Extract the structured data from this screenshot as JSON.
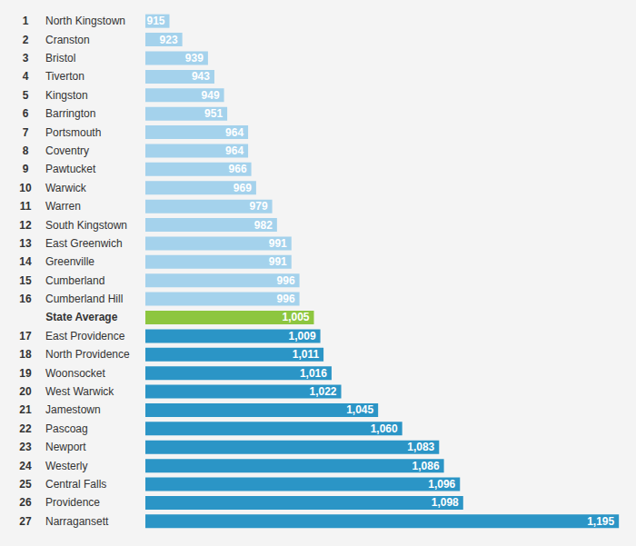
{
  "chart_data": {
    "type": "bar",
    "orientation": "horizontal",
    "ranks": [
      1,
      2,
      3,
      4,
      5,
      6,
      7,
      8,
      9,
      10,
      11,
      12,
      13,
      14,
      15,
      16,
      null,
      17,
      18,
      19,
      20,
      21,
      22,
      23,
      24,
      25,
      26,
      27
    ],
    "categories": [
      "North Kingstown",
      "Cranston",
      "Bristol",
      "Tiverton",
      "Kingston",
      "Barrington",
      "Portsmouth",
      "Coventry",
      "Pawtucket",
      "Warwick",
      "Warren",
      "South Kingstown",
      "East Greenwich",
      "Greenville",
      "Cumberland",
      "Cumberland Hill",
      "State Average",
      "East Providence",
      "North Providence",
      "Woonsocket",
      "West Warwick",
      "Jamestown",
      "Pascoag",
      "Newport",
      "Westerly",
      "Central Falls",
      "Providence",
      "Narragansett"
    ],
    "values": [
      915,
      923,
      939,
      943,
      949,
      951,
      964,
      964,
      966,
      969,
      979,
      982,
      991,
      991,
      996,
      996,
      1005,
      1009,
      1011,
      1016,
      1022,
      1045,
      1060,
      1083,
      1086,
      1096,
      1098,
      1195
    ],
    "value_labels": [
      "915",
      "923",
      "939",
      "943",
      "949",
      "951",
      "964",
      "964",
      "966",
      "969",
      "979",
      "982",
      "991",
      "991",
      "996",
      "996",
      "1,005",
      "1,009",
      "1,011",
      "1,016",
      "1,022",
      "1,045",
      "1,060",
      "1,083",
      "1,086",
      "1,096",
      "1,098",
      "1,195"
    ],
    "colors": [
      "#a4d2ec",
      "#a4d2ec",
      "#a4d2ec",
      "#a4d2ec",
      "#a4d2ec",
      "#a4d2ec",
      "#a4d2ec",
      "#a4d2ec",
      "#a4d2ec",
      "#a4d2ec",
      "#a4d2ec",
      "#a4d2ec",
      "#a4d2ec",
      "#a4d2ec",
      "#a4d2ec",
      "#a4d2ec",
      "#8dc63f",
      "#2b95c6",
      "#2b95c6",
      "#2b95c6",
      "#2b95c6",
      "#2b95c6",
      "#2b95c6",
      "#2b95c6",
      "#2b95c6",
      "#2b95c6",
      "#2b95c6",
      "#2b95c6"
    ],
    "xlim": [
      900,
      1200
    ],
    "data_labels": true,
    "tick_labels": "y",
    "grid": false
  }
}
